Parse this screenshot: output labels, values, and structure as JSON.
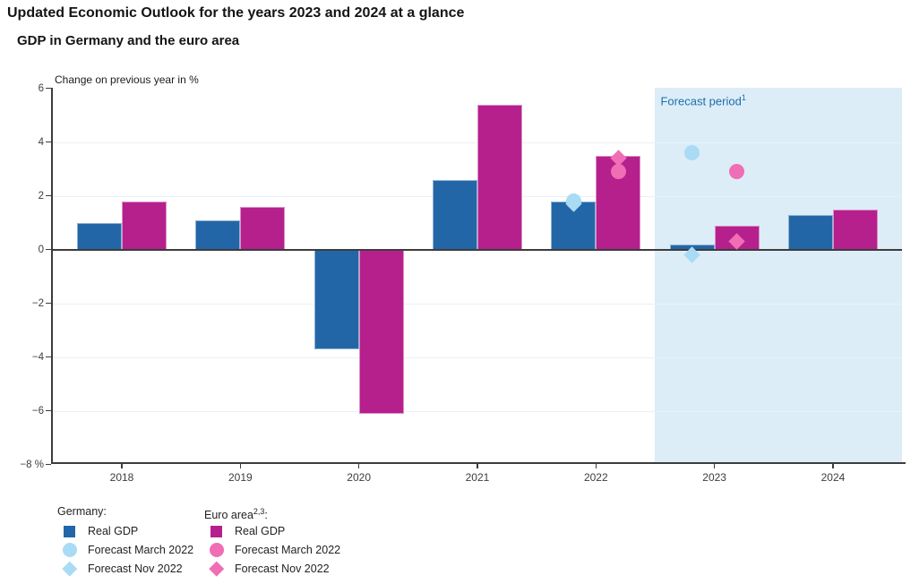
{
  "header": {
    "title": "Updated Economic Outlook for the years 2023 and 2024 at a glance",
    "subtitle": "GDP in Germany and the euro area"
  },
  "chart_data": {
    "type": "bar",
    "title": "GDP in Germany and the euro area",
    "axis_note": "Change on previous year in %",
    "xlabel": "",
    "ylabel": "Change on previous year in %",
    "categories": [
      "2018",
      "2019",
      "2020",
      "2021",
      "2022",
      "2023",
      "2024"
    ],
    "ylim": [
      -8,
      6
    ],
    "grid": true,
    "gridline_values": [
      4,
      2,
      -2,
      -4,
      -6
    ],
    "yticks": [
      {
        "value": 6,
        "label": "6"
      },
      {
        "value": 4,
        "label": "4"
      },
      {
        "value": 2,
        "label": "2"
      },
      {
        "value": 0,
        "label": "0"
      },
      {
        "value": -2,
        "label": "−2"
      },
      {
        "value": -4,
        "label": "−4"
      },
      {
        "value": -6,
        "label": "−6"
      },
      {
        "value": -8,
        "label": "−8 %"
      }
    ],
    "series": [
      {
        "name": "Germany Real GDP",
        "side": "left",
        "color_key": "germany_bar",
        "values": [
          1.0,
          1.1,
          -3.7,
          2.6,
          1.8,
          0.2,
          1.3
        ]
      },
      {
        "name": "Euro area Real GDP",
        "side": "right",
        "color_key": "euro_bar",
        "values": [
          1.8,
          1.6,
          -6.1,
          5.4,
          3.5,
          0.9,
          1.5
        ]
      }
    ],
    "markers": [
      {
        "name": "Germany Forecast March 2022",
        "shape": "circle",
        "side": "left",
        "color_key": "germany_forecast",
        "points": [
          {
            "category": "2022",
            "value": 1.8
          },
          {
            "category": "2023",
            "value": 3.6
          }
        ]
      },
      {
        "name": "Germany Forecast Nov 2022",
        "shape": "diamond",
        "side": "left",
        "color_key": "germany_forecast",
        "points": [
          {
            "category": "2022",
            "value": 1.7
          },
          {
            "category": "2023",
            "value": -0.2
          }
        ]
      },
      {
        "name": "Euro area Forecast March 2022",
        "shape": "circle",
        "side": "right",
        "color_key": "euro_forecast",
        "points": [
          {
            "category": "2022",
            "value": 2.9
          },
          {
            "category": "2023",
            "value": 2.9
          }
        ]
      },
      {
        "name": "Euro area Forecast Nov 2022",
        "shape": "diamond",
        "side": "right",
        "color_key": "euro_forecast",
        "points": [
          {
            "category": "2022",
            "value": 3.4
          },
          {
            "category": "2023",
            "value": 0.3
          }
        ]
      }
    ],
    "forecast_region": {
      "label": "Forecast period",
      "sup": "1",
      "starts_before_category": "2023"
    },
    "legend_position": "bottom-left",
    "colors": {
      "germany_bar": "#2266a7",
      "euro_bar": "#b5208d",
      "germany_forecast": "#a9dbf5",
      "euro_forecast": "#ef6eb5",
      "forecast_bg": "#dcedf8",
      "forecast_label_text": "#1e6fa8",
      "grid": "#e9f1f7",
      "axis": "#3c3c3c",
      "tick_text": "#3d3d3d"
    }
  },
  "legend": {
    "groups": [
      {
        "header": "Germany",
        "header_sup": "",
        "items": [
          {
            "shape": "square",
            "color_key": "germany_bar",
            "label": "Real GDP"
          },
          {
            "shape": "circle",
            "color_key": "germany_forecast",
            "label": "Forecast March 2022"
          },
          {
            "shape": "diamond",
            "color_key": "germany_forecast",
            "label": "Forecast Nov 2022"
          }
        ]
      },
      {
        "header": "Euro area",
        "header_sup": "2,3",
        "items": [
          {
            "shape": "square",
            "color_key": "euro_bar",
            "label": "Real GDP"
          },
          {
            "shape": "circle",
            "color_key": "euro_forecast",
            "label": "Forecast March 2022"
          },
          {
            "shape": "diamond",
            "color_key": "euro_forecast",
            "label": "Forecast Nov 2022"
          }
        ]
      }
    ]
  }
}
